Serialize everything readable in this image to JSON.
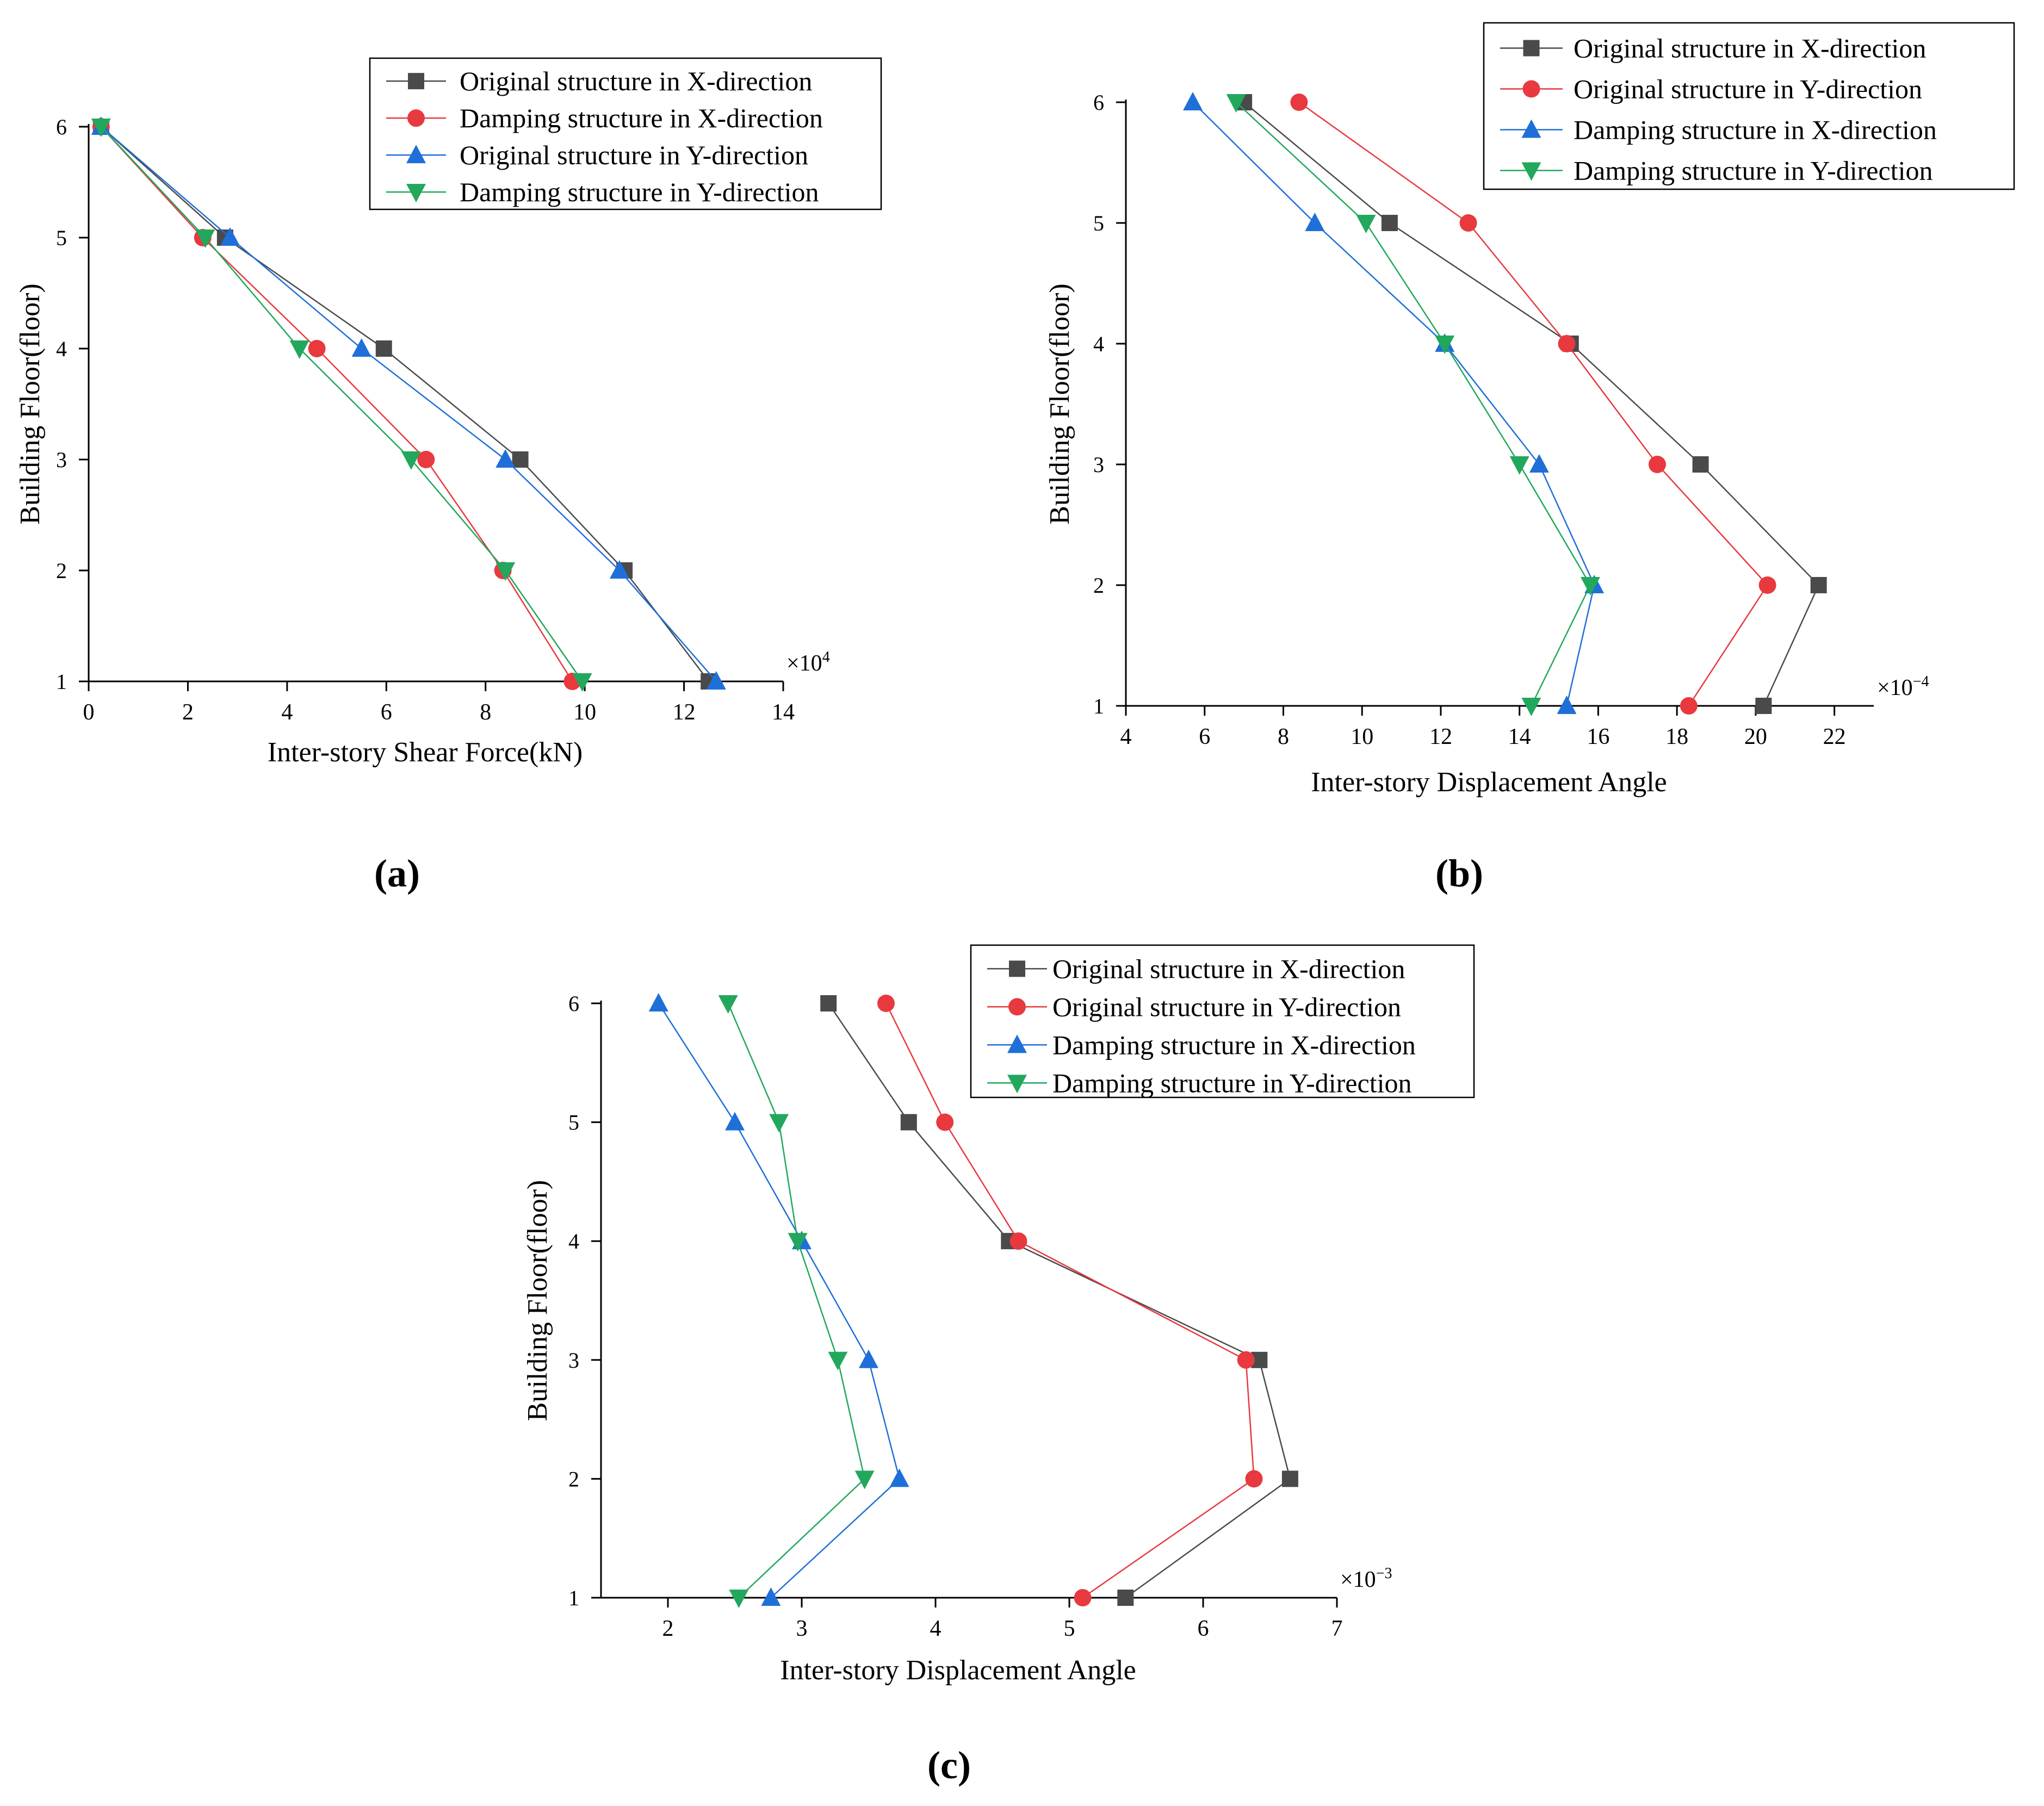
{
  "colors": {
    "black": "#4a4a4a",
    "red": "#e8393f",
    "blue": "#1f6fd8",
    "green": "#22a85c"
  },
  "charts": [
    {
      "type": "line",
      "panel_label": "(a)",
      "title": "",
      "xlabel": "Inter-story Shear Force(kN)",
      "ylabel": "Building Floor(floor)",
      "x_multiplier": "×10",
      "x_exponent": "4",
      "xlim": [
        0,
        14
      ],
      "ylim": [
        1,
        6
      ],
      "xticks": [
        0,
        2,
        4,
        6,
        8,
        10,
        12,
        14
      ],
      "yticks": [
        1,
        2,
        3,
        4,
        5,
        6
      ],
      "legend_position": "top-right",
      "series": [
        {
          "name": "Original structure in X-direction",
          "marker": "square",
          "color": "#4a4a4a",
          "points": [
            [
              12.5,
              1
            ],
            [
              10.8,
              2
            ],
            [
              8.7,
              3
            ],
            [
              5.95,
              4
            ],
            [
              2.75,
              5
            ],
            [
              0.25,
              6
            ]
          ]
        },
        {
          "name": "Damping structure in X-direction",
          "marker": "circle",
          "color": "#e8393f",
          "points": [
            [
              9.75,
              1
            ],
            [
              8.35,
              2
            ],
            [
              6.8,
              3
            ],
            [
              4.6,
              4
            ],
            [
              2.3,
              5
            ],
            [
              0.25,
              6
            ]
          ]
        },
        {
          "name": "Original structure in Y-direction",
          "marker": "triangle-up",
          "color": "#1f6fd8",
          "points": [
            [
              12.65,
              1
            ],
            [
              10.7,
              2
            ],
            [
              8.4,
              3
            ],
            [
              5.5,
              4
            ],
            [
              2.85,
              5
            ],
            [
              0.25,
              6
            ]
          ]
        },
        {
          "name": "Damping structure in Y-direction",
          "marker": "triangle-down",
          "color": "#22a85c",
          "points": [
            [
              9.95,
              1
            ],
            [
              8.4,
              2
            ],
            [
              6.5,
              3
            ],
            [
              4.25,
              4
            ],
            [
              2.35,
              5
            ],
            [
              0.25,
              6
            ]
          ]
        }
      ]
    },
    {
      "type": "line",
      "panel_label": "(b)",
      "title": "",
      "xlabel": "Inter-story Displacement Angle",
      "ylabel": "Building Floor(floor)",
      "x_multiplier": "×10",
      "x_exponent": "−4",
      "xlim": [
        4,
        23
      ],
      "ylim": [
        1,
        6
      ],
      "xticks": [
        4,
        6,
        8,
        10,
        12,
        14,
        16,
        18,
        20,
        22
      ],
      "yticks": [
        1,
        2,
        3,
        4,
        5,
        6
      ],
      "legend_position": "top-right",
      "series": [
        {
          "name": "Original structure in X-direction",
          "marker": "square",
          "color": "#4a4a4a",
          "points": [
            [
              20.2,
              1
            ],
            [
              21.6,
              2
            ],
            [
              18.6,
              3
            ],
            [
              15.3,
              4
            ],
            [
              10.7,
              5
            ],
            [
              7.0,
              6
            ]
          ]
        },
        {
          "name": "Original structure in Y-direction",
          "marker": "circle",
          "color": "#e8393f",
          "points": [
            [
              18.3,
              1
            ],
            [
              20.3,
              2
            ],
            [
              17.5,
              3
            ],
            [
              15.2,
              4
            ],
            [
              12.7,
              5
            ],
            [
              8.4,
              6
            ]
          ]
        },
        {
          "name": "Damping structure in X-direction",
          "marker": "triangle-up",
          "color": "#1f6fd8",
          "points": [
            [
              15.2,
              1
            ],
            [
              15.9,
              2
            ],
            [
              14.5,
              3
            ],
            [
              12.1,
              4
            ],
            [
              8.8,
              5
            ],
            [
              5.7,
              6
            ]
          ]
        },
        {
          "name": "Damping structure in Y-direction",
          "marker": "triangle-down",
          "color": "#22a85c",
          "points": [
            [
              14.3,
              1
            ],
            [
              15.8,
              2
            ],
            [
              14.0,
              3
            ],
            [
              12.1,
              4
            ],
            [
              10.1,
              5
            ],
            [
              6.8,
              6
            ]
          ]
        }
      ]
    },
    {
      "type": "line",
      "panel_label": "(c)",
      "title": "",
      "xlabel": "Inter-story Displacement Angle",
      "ylabel": "Building Floor(floor)",
      "x_multiplier": "×10",
      "x_exponent": "−3",
      "xlim": [
        1.5,
        7
      ],
      "ylim": [
        1,
        6
      ],
      "xticks": [
        2,
        3,
        4,
        5,
        6,
        7
      ],
      "yticks": [
        1,
        2,
        3,
        4,
        5,
        6
      ],
      "legend_position": "top-right",
      "series": [
        {
          "name": "Original structure in X-direction",
          "marker": "square",
          "color": "#4a4a4a",
          "points": [
            [
              5.42,
              1
            ],
            [
              6.65,
              2
            ],
            [
              6.42,
              3
            ],
            [
              4.55,
              4
            ],
            [
              3.8,
              5
            ],
            [
              3.2,
              6
            ]
          ]
        },
        {
          "name": "Original structure in Y-direction",
          "marker": "circle",
          "color": "#e8393f",
          "points": [
            [
              5.1,
              1
            ],
            [
              6.38,
              2
            ],
            [
              6.32,
              3
            ],
            [
              4.62,
              4
            ],
            [
              4.07,
              5
            ],
            [
              3.63,
              6
            ]
          ]
        },
        {
          "name": "Damping structure in X-direction",
          "marker": "triangle-up",
          "color": "#1f6fd8",
          "points": [
            [
              2.77,
              1
            ],
            [
              3.73,
              2
            ],
            [
              3.5,
              3
            ],
            [
              3.0,
              4
            ],
            [
              2.5,
              5
            ],
            [
              1.93,
              6
            ]
          ]
        },
        {
          "name": "Damping structure in Y-direction",
          "marker": "triangle-down",
          "color": "#22a85c",
          "points": [
            [
              2.53,
              1
            ],
            [
              3.47,
              2
            ],
            [
              3.27,
              3
            ],
            [
              2.97,
              4
            ],
            [
              2.83,
              5
            ],
            [
              2.45,
              6
            ]
          ]
        }
      ]
    }
  ]
}
